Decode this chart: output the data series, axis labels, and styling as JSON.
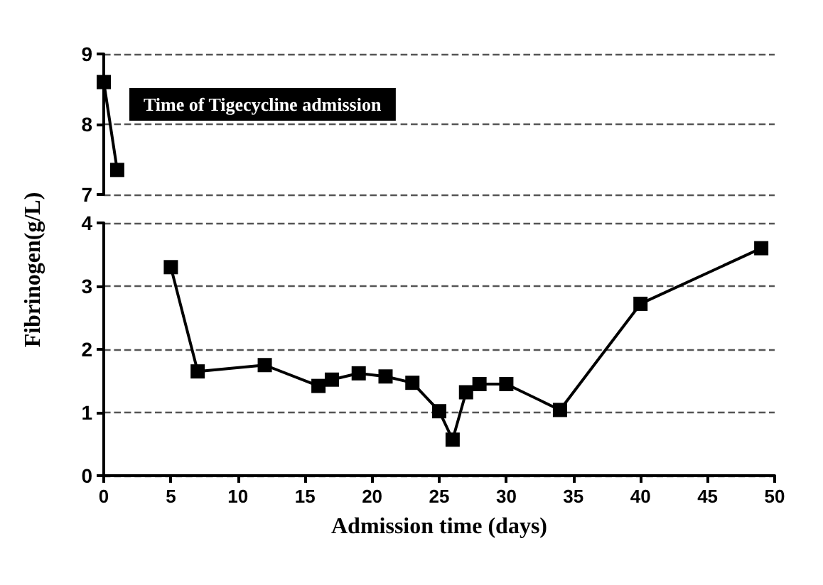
{
  "chart_data": [
    {
      "type": "line",
      "x": [
        0,
        1
      ],
      "xlim": [
        0,
        50
      ],
      "xticks": [
        0,
        5,
        10,
        15,
        20,
        25,
        30,
        35,
        40,
        45,
        50
      ],
      "ylim": [
        7,
        9
      ],
      "yticks": [
        7,
        8,
        9
      ],
      "tick_labels": "y",
      "grid": "y",
      "marker": "square",
      "line_style": "solid",
      "series": [
        {
          "color": "#000000",
          "values": [
            8.6,
            7.35
          ]
        }
      ],
      "annotations": [
        "Time of Tigecycline admission"
      ]
    },
    {
      "type": "line",
      "x": [
        5,
        7,
        12,
        16,
        17,
        19,
        21,
        23,
        25,
        26,
        27,
        28,
        30,
        34,
        40,
        49
      ],
      "xlim": [
        0,
        50
      ],
      "xticks": [
        0,
        5,
        10,
        15,
        20,
        25,
        30,
        35,
        40,
        45,
        50
      ],
      "ylim": [
        0,
        4
      ],
      "yticks": [
        0,
        1,
        2,
        3,
        4
      ],
      "grid": "y",
      "marker": "square",
      "line_style": "solid",
      "xlabel": "Admission time (days)",
      "ylabel": "Fibrinogen(g/L)",
      "series": [
        {
          "color": "#000000",
          "values": [
            3.3,
            1.65,
            1.75,
            1.42,
            1.52,
            1.62,
            1.57,
            1.47,
            1.02,
            0.57,
            1.32,
            1.45,
            1.45,
            1.04,
            2.72,
            3.6
          ]
        }
      ]
    }
  ]
}
